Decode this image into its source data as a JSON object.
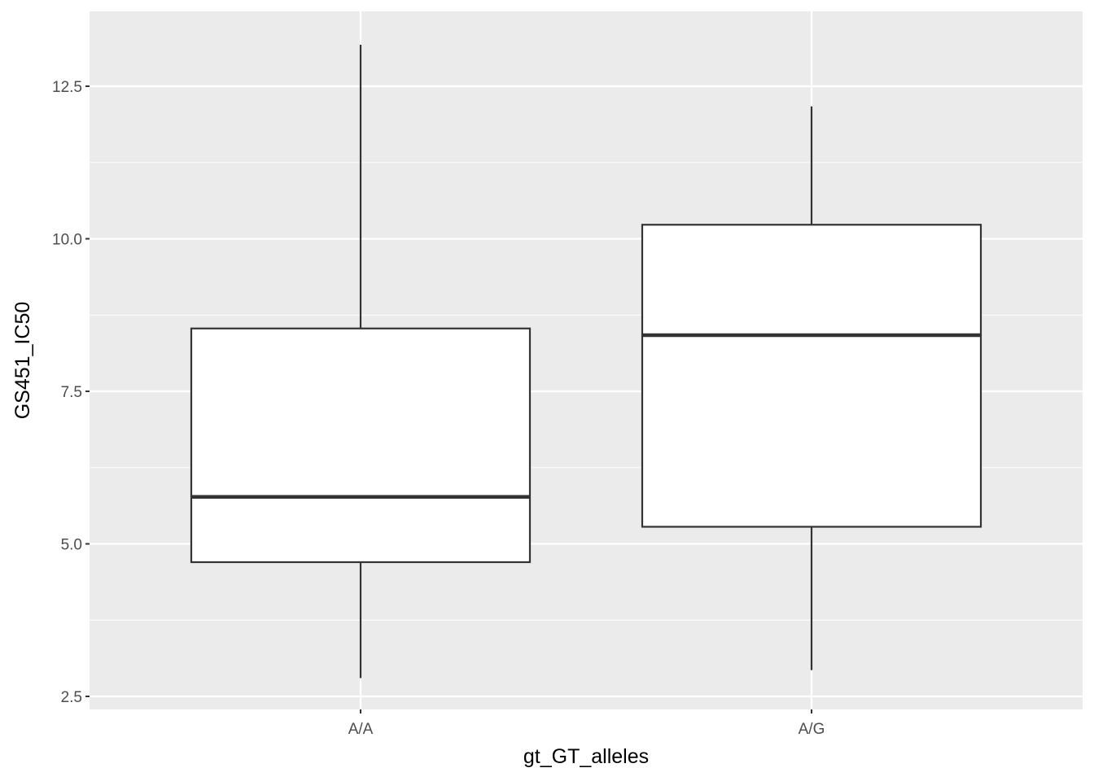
{
  "chart_data": {
    "type": "box",
    "xlabel": "gt_GT_alleles",
    "ylabel": "GS451_IC50",
    "ylim": [
      2.2,
      13.7
    ],
    "y_ticks": [
      2.5,
      5.0,
      7.5,
      10.0,
      12.5
    ],
    "y_tick_labels": [
      "2.5",
      "5.0",
      "7.5",
      "10.0",
      "12.5"
    ],
    "grid": true,
    "categories": [
      "A/A",
      "A/G"
    ],
    "boxes": [
      {
        "category": "A/A",
        "whisker_low": 2.8,
        "q1": 4.7,
        "median": 5.77,
        "q3": 8.53,
        "whisker_high": 13.18
      },
      {
        "category": "A/G",
        "whisker_low": 2.93,
        "q1": 5.28,
        "median": 8.42,
        "q3": 10.23,
        "whisker_high": 12.17
      }
    ],
    "colors": {
      "panel_background": "#ebebeb",
      "grid": "#ffffff",
      "box_fill": "#ffffff",
      "box_line": "#333333",
      "tick": "#333333",
      "tick_label": "#4d4d4d"
    }
  }
}
